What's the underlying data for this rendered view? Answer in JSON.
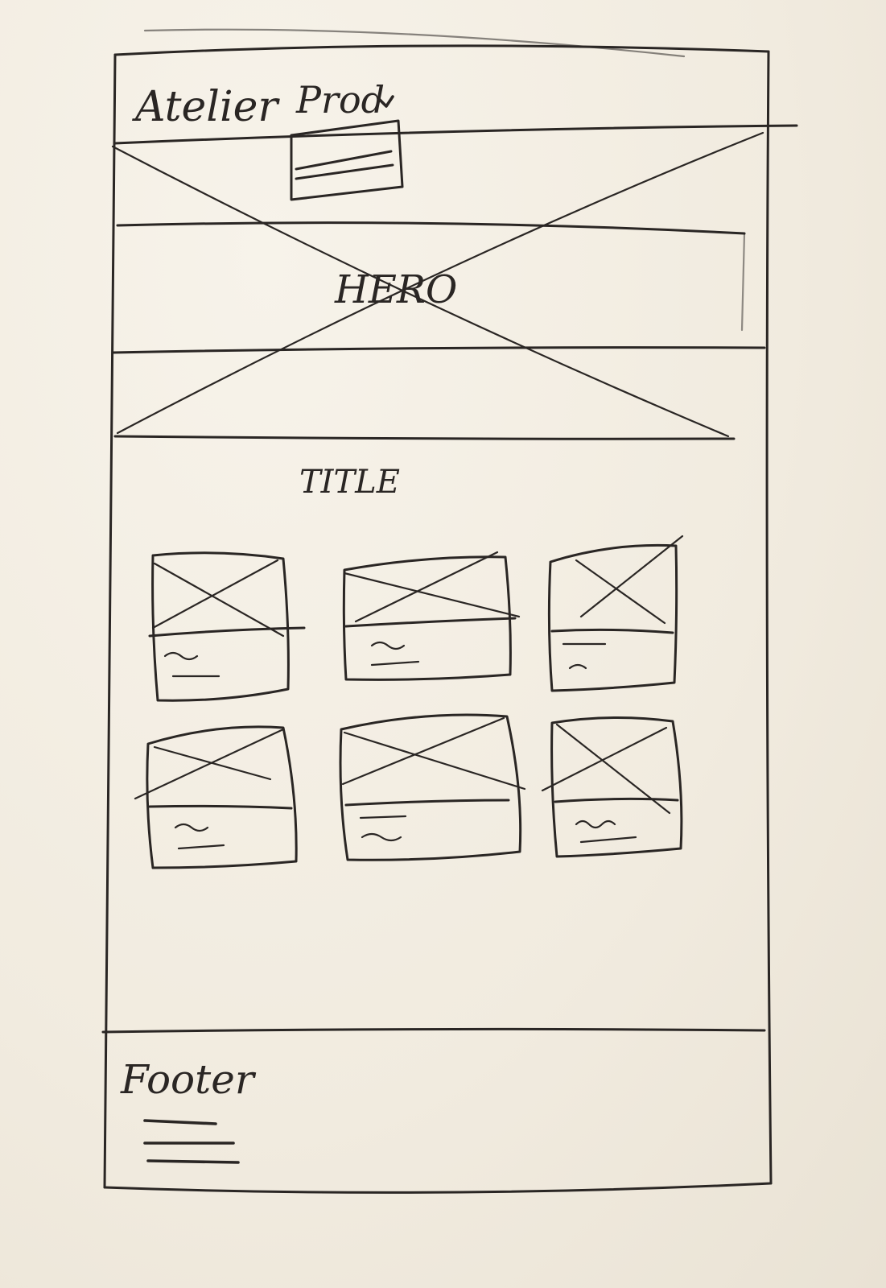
{
  "header": {
    "brand": "Atelier",
    "nav_products": "Prod"
  },
  "hero": {
    "label": "HERO"
  },
  "section": {
    "title": "TITLE"
  },
  "products": {
    "cards": [
      {
        "id": 1
      },
      {
        "id": 2
      },
      {
        "id": 3
      },
      {
        "id": 4
      },
      {
        "id": 5
      },
      {
        "id": 6
      }
    ]
  },
  "footer": {
    "label": "Footer"
  }
}
